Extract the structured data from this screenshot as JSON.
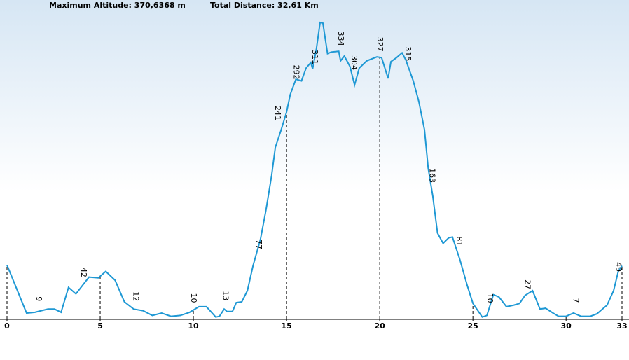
{
  "chart_data": {
    "type": "line",
    "title": "Maximum Altitude: 370,6368 m",
    "subtitle": "Total Distance: 32,61 Km",
    "color": "#1e98d4",
    "x": [
      0,
      1.05,
      1.5,
      2.2,
      2.55,
      2.9,
      3.3,
      3.7,
      4.4,
      4.9,
      5.3,
      5.8,
      6.3,
      6.8,
      7.3,
      7.8,
      8.3,
      8.8,
      9.3,
      9.8,
      10.3,
      10.7,
      11.2,
      11.4,
      11.65,
      11.8,
      12.1,
      12.3,
      12.6,
      12.9,
      13.2,
      13.6,
      13.9,
      14.2,
      14.4,
      14.7,
      15.0,
      15.2,
      15.5,
      15.8,
      16.05,
      16.3,
      16.4,
      16.6,
      16.8,
      16.95,
      17.2,
      17.4,
      17.8,
      17.9,
      18.1,
      18.4,
      18.65,
      18.9,
      19.3,
      19.85,
      20.1,
      20.45,
      20.6,
      20.9,
      21.2,
      21.4,
      21.8,
      22.1,
      22.4,
      22.6,
      22.85,
      23.1,
      23.4,
      23.7,
      23.9,
      24.3,
      24.7,
      25.0,
      25.5,
      25.75,
      26.1,
      26.4,
      26.8,
      27.2,
      27.5,
      27.8,
      28.2,
      28.6,
      28.9,
      29.3,
      29.6,
      30.0,
      30.4,
      30.8,
      31.3,
      31.65,
      32.2,
      32.55,
      32.8,
      33.0
    ],
    "values": [
      67,
      7,
      8,
      12,
      12,
      8,
      39,
      31,
      52,
      51,
      59,
      48,
      21,
      12,
      10,
      4,
      7,
      3,
      4,
      8,
      15,
      15,
      2,
      3,
      12,
      9,
      9,
      20,
      21,
      35,
      66,
      99,
      136,
      179,
      214,
      235,
      258,
      280,
      299,
      297,
      313,
      320,
      312,
      337,
      370,
      369,
      331,
      333,
      334,
      322,
      328,
      315,
      292,
      313,
      322,
      327,
      326,
      300,
      321,
      326,
      332,
      323,
      297,
      271,
      236,
      188,
      153,
      107,
      94,
      101,
      102,
      74,
      41,
      19,
      2,
      4,
      30,
      27,
      15,
      17,
      19,
      29,
      35,
      12,
      13,
      7,
      3,
      3,
      7,
      3,
      3,
      6,
      17,
      35,
      59,
      66
    ],
    "labels": {
      "x": [
        1.7,
        4.1,
        6.9,
        10.0,
        11.7,
        13.5,
        14.5,
        15.5,
        16.5,
        17.9,
        18.6,
        20.0,
        21.5,
        22.8,
        24.25,
        25.9,
        27.9,
        30.5,
        32.8
      ],
      "values": [
        9,
        42,
        12,
        10,
        13,
        77,
        241,
        292,
        311,
        334,
        304,
        327,
        315,
        163,
        81,
        10,
        27,
        7,
        49
      ]
    },
    "xlim": [
      0,
      33
    ],
    "xticks": [
      0,
      5,
      10,
      15,
      20,
      25,
      30,
      33
    ],
    "ylim": [
      0,
      370
    ]
  }
}
